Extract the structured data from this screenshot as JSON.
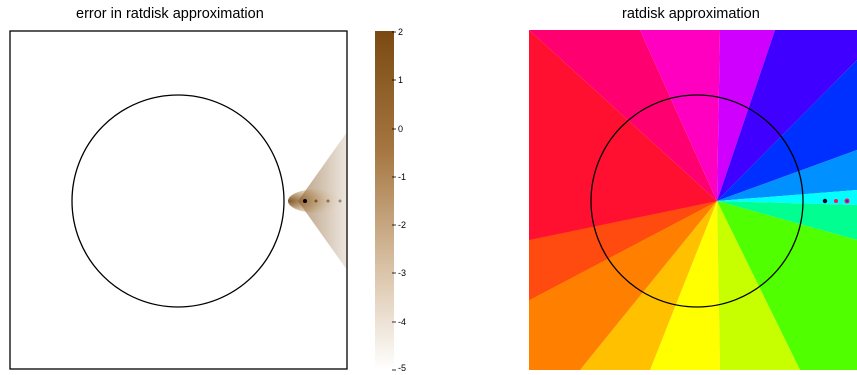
{
  "left_panel": {
    "title": "error in ratdisk approximation",
    "colorbar": {
      "ticks": [
        "2",
        "1",
        "0",
        "-1",
        "-2",
        "-3",
        "-4",
        "-5"
      ],
      "range": [
        -5,
        2
      ],
      "color_high": "#7a4a12",
      "color_low": "#ffffff"
    }
  },
  "right_panel": {
    "title": "ratdisk approximation",
    "coloring": "phase portrait (hue = argument)"
  },
  "colors": {
    "circle": "#000000",
    "pole_marker": "#000000"
  }
}
